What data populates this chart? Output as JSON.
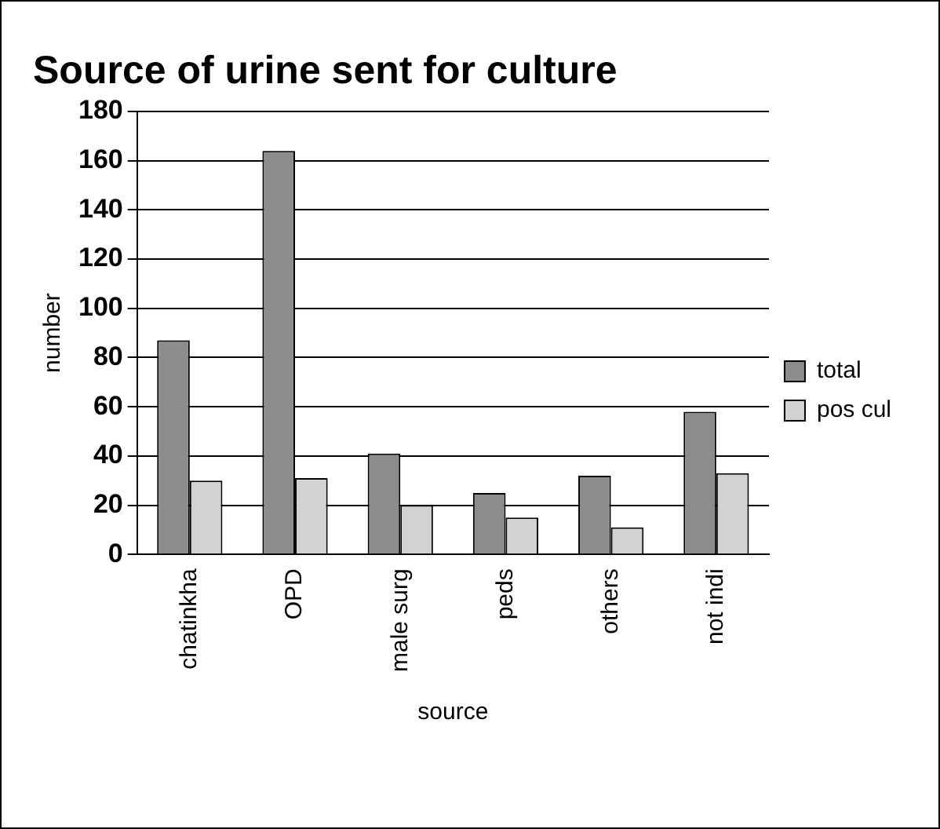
{
  "chart_data": {
    "type": "bar",
    "title": "Source of urine sent for culture",
    "xlabel": "source",
    "ylabel": "number",
    "categories": [
      "chatinkha",
      "OPD",
      "male surg",
      "peds",
      "others",
      "not indi"
    ],
    "series": [
      {
        "name": "total",
        "color": "#8c8c8c",
        "values": [
          87,
          164,
          41,
          25,
          32,
          58
        ]
      },
      {
        "name": "pos cul",
        "color": "#d2d2d2",
        "values": [
          30,
          31,
          20,
          15,
          11,
          33
        ]
      }
    ],
    "ylim": [
      0,
      180
    ],
    "yticks": [
      0,
      20,
      40,
      60,
      80,
      100,
      120,
      140,
      160,
      180
    ],
    "grid": "y",
    "legend": "right"
  }
}
